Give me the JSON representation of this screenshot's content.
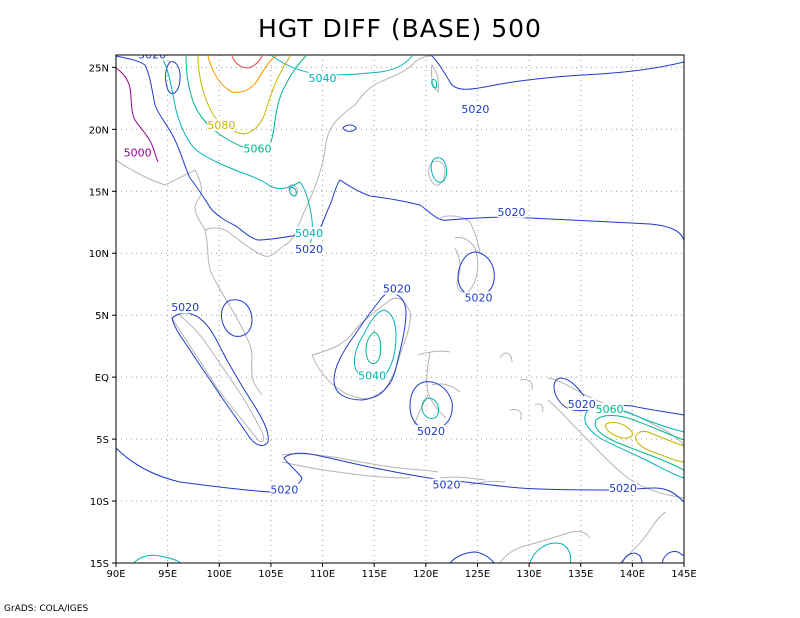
{
  "title": "HGT DIFF (BASE) 500",
  "credit": "GrADS: COLA/IGES",
  "map": {
    "lon_ticks": [
      "90E",
      "95E",
      "100E",
      "105E",
      "110E",
      "115E",
      "120E",
      "125E",
      "130E",
      "135E",
      "140E",
      "145E"
    ],
    "lat_ticks": [
      "15S",
      "10S",
      "5S",
      "EQ",
      "5N",
      "10N",
      "15N",
      "20N",
      "25N"
    ],
    "lon_range": [
      90,
      145
    ],
    "lat_range": [
      -15,
      26
    ],
    "grid": true,
    "contour_labels": [
      {
        "text": "5020",
        "lon": 93.5,
        "lat": 25.8,
        "color": "#1e3cc8"
      },
      {
        "text": "5040",
        "lon": 110.0,
        "lat": 23.9,
        "color": "#00b4b4"
      },
      {
        "text": "5020",
        "lon": 124.8,
        "lat": 21.4,
        "color": "#1e3cc8"
      },
      {
        "text": "5080",
        "lon": 100.2,
        "lat": 20.1,
        "color": "#c8b400"
      },
      {
        "text": "5060",
        "lon": 103.7,
        "lat": 18.2,
        "color": "#00b48c"
      },
      {
        "text": "5000",
        "lon": 92.1,
        "lat": 17.9,
        "color": "#960096"
      },
      {
        "text": "5020",
        "lon": 128.3,
        "lat": 13.1,
        "color": "#1e3cc8"
      },
      {
        "text": "5040",
        "lon": 108.7,
        "lat": 11.4,
        "color": "#00b4b4"
      },
      {
        "text": "5020",
        "lon": 108.7,
        "lat": 10.1,
        "color": "#1e3cc8"
      },
      {
        "text": "5020",
        "lon": 117.2,
        "lat": 6.9,
        "color": "#1e3cc8"
      },
      {
        "text": "5020",
        "lon": 125.1,
        "lat": 6.2,
        "color": "#1e3cc8"
      },
      {
        "text": "5020",
        "lon": 96.7,
        "lat": 5.4,
        "color": "#1e3cc8"
      },
      {
        "text": "5040",
        "lon": 114.8,
        "lat": -0.1,
        "color": "#00b4b4"
      },
      {
        "text": "5020",
        "lon": 135.1,
        "lat": -2.4,
        "color": "#1e3cc8"
      },
      {
        "text": "5060",
        "lon": 137.8,
        "lat": -2.8,
        "color": "#00b48c"
      },
      {
        "text": "5020",
        "lon": 120.5,
        "lat": -4.6,
        "color": "#1e3cc8"
      },
      {
        "text": "5020",
        "lon": 106.3,
        "lat": -9.3,
        "color": "#1e3cc8"
      },
      {
        "text": "5020",
        "lon": 122.0,
        "lat": -8.9,
        "color": "#1e3cc8"
      },
      {
        "text": "5020",
        "lon": 139.1,
        "lat": -9.2,
        "color": "#1e3cc8"
      }
    ]
  },
  "colors": {
    "c5000": "#960096",
    "c5020": "#1e3cc8",
    "c5040": "#00b4b4",
    "c5060": "#00b48c",
    "c5080": "#c8b400",
    "c5100": "#ff9600",
    "c5120": "#e64646",
    "coast": "#b4b4b4",
    "grid": "#a0a0a0"
  }
}
